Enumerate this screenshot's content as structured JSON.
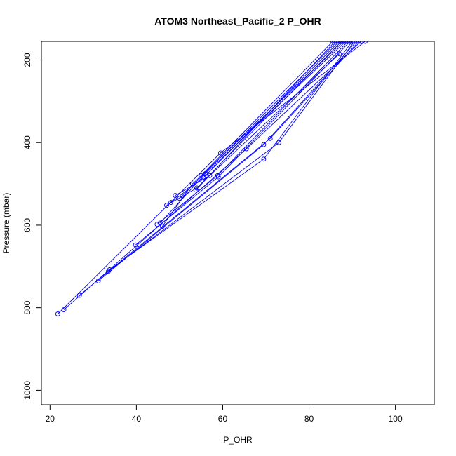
{
  "chart_data": {
    "type": "line",
    "title": "ATOM3 Northeast_Pacific_2 P_OHR",
    "xlabel": "P_OHR",
    "ylabel": "Pressure (mbar)",
    "xlim": [
      18,
      109
    ],
    "ylim": [
      1035,
      155
    ],
    "y_reversed": true,
    "x_ticks": [
      20,
      40,
      60,
      80,
      100
    ],
    "y_ticks": [
      200,
      400,
      600,
      800,
      1000
    ],
    "grid": false,
    "legend": "none",
    "color": "#0000ff",
    "markers": "open-circle",
    "series": [
      {
        "x": [
          21.8,
          59.5,
          93.0
        ],
        "y": [
          815,
          425,
          155
        ]
      },
      {
        "x": [
          23.2,
          65.5,
          92.0
        ],
        "y": [
          805,
          415,
          155
        ]
      },
      {
        "x": [
          26.8,
          71.0,
          91.5
        ],
        "y": [
          770,
          390,
          155
        ]
      },
      {
        "x": [
          31.2,
          69.5,
          91.0
        ],
        "y": [
          735,
          405,
          155
        ]
      },
      {
        "x": [
          33.5,
          73.0,
          90.5
        ],
        "y": [
          712,
          400,
          155
        ]
      },
      {
        "x": [
          33.8,
          69.5,
          90.0
        ],
        "y": [
          708,
          440,
          155
        ]
      },
      {
        "x": [
          39.8,
          59.0,
          89.5
        ],
        "y": [
          648,
          483,
          155
        ]
      },
      {
        "x": [
          44.8,
          58.8,
          89.0
        ],
        "y": [
          598,
          480,
          155
        ]
      },
      {
        "x": [
          45.5,
          56.0,
          88.5
        ],
        "y": [
          595,
          475,
          155
        ]
      },
      {
        "x": [
          46.0,
          53.0,
          88.0
        ],
        "y": [
          603,
          500,
          155
        ]
      },
      {
        "x": [
          47.0,
          54.0,
          87.5
        ],
        "y": [
          552,
          510,
          155
        ]
      },
      {
        "x": [
          48.0,
          55.5,
          87.0
        ],
        "y": [
          545,
          485,
          155
        ]
      },
      {
        "x": [
          49.0,
          57.0,
          87.0
        ],
        "y": [
          528,
          480,
          185
        ]
      },
      {
        "x": [
          50.0,
          86.5
        ],
        "y": [
          535,
          155
        ]
      },
      {
        "x": [
          53.8,
          86.0
        ],
        "y": [
          515,
          155
        ]
      },
      {
        "x": [
          55.0,
          85.5
        ],
        "y": [
          480,
          155
        ]
      }
    ]
  }
}
